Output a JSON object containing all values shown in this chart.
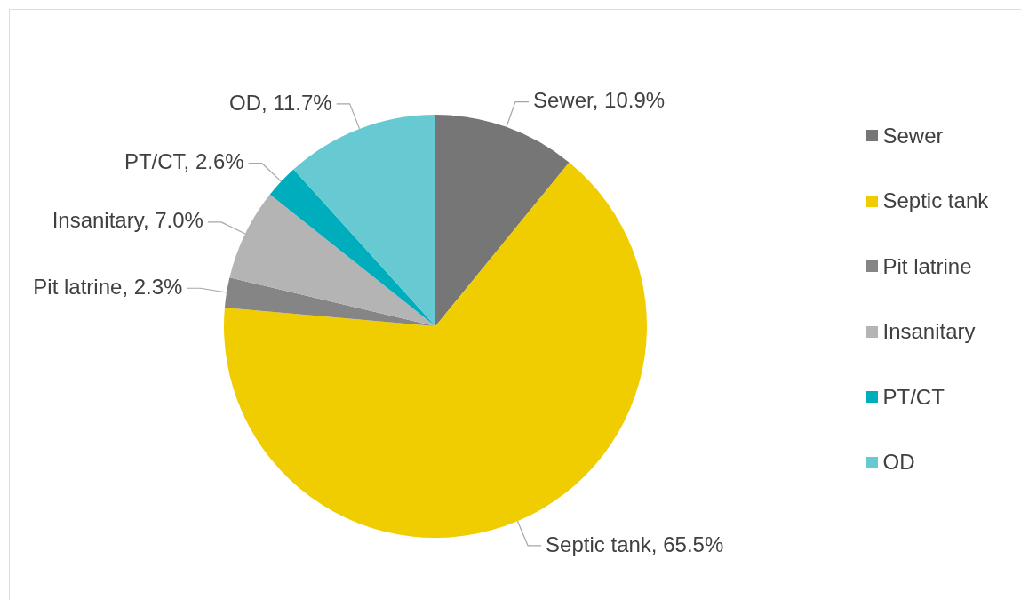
{
  "chart_data": {
    "type": "pie",
    "categories": [
      "Sewer",
      "Septic tank",
      "Pit latrine",
      "Insanitary",
      "PT/CT",
      "OD"
    ],
    "values": [
      10.9,
      65.5,
      2.3,
      7.0,
      2.6,
      11.7
    ],
    "colors": [
      "#767676",
      "#f0cd00",
      "#858585",
      "#b4b4b4",
      "#00adbc",
      "#67c9d2"
    ],
    "value_labels": [
      "Sewer, 10.9%",
      "Septic tank, 65.5%",
      "Pit latrine, 2.3%",
      "Insanitary, 7.0%",
      "PT/CT, 2.6%",
      "OD, 11.7%"
    ],
    "legend": "right"
  }
}
